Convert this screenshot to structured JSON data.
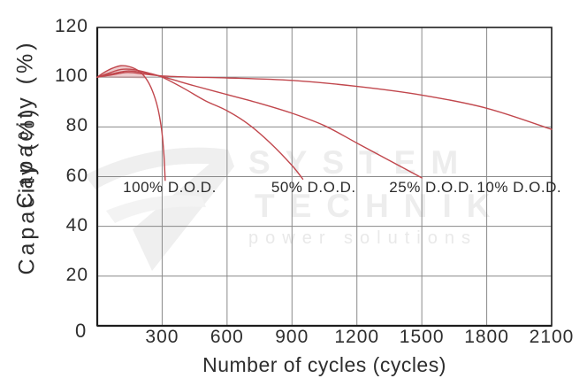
{
  "chart_data": {
    "type": "line",
    "title": "",
    "xlabel": "Number of cycles (cycles)",
    "ylabel": "Capacity (%)",
    "ylabel_duplicate": "Capacity (%)",
    "origin_label": "0",
    "xlim": [
      0,
      2100
    ],
    "ylim": [
      0,
      120
    ],
    "x_ticks": [
      300,
      600,
      900,
      1200,
      1500,
      1800,
      2100
    ],
    "y_ticks": [
      20,
      40,
      60,
      80,
      100,
      120
    ],
    "grid": true,
    "legend_position": "none",
    "colors": {
      "line": "#c1474d",
      "peak_fill": "rgba(193,73,80,0.28)",
      "grid": "#8a8a8a",
      "border": "#1d1d1d",
      "text": "#2e2e2e",
      "watermark": "#ededed"
    },
    "series": [
      {
        "name": "100% D.O.D.",
        "points": [
          [
            0,
            100
          ],
          [
            30,
            101.8
          ],
          [
            70,
            103.6
          ],
          [
            110,
            104.6
          ],
          [
            150,
            104.2
          ],
          [
            190,
            102.6
          ],
          [
            225,
            99.5
          ],
          [
            255,
            94.5
          ],
          [
            280,
            87.5
          ],
          [
            298,
            78.5
          ],
          [
            308,
            69
          ],
          [
            314,
            58.5
          ]
        ]
      },
      {
        "name": "50% D.O.D.",
        "points": [
          [
            0,
            100
          ],
          [
            50,
            101.5
          ],
          [
            110,
            103.1
          ],
          [
            170,
            103
          ],
          [
            240,
            101.6
          ],
          [
            300,
            100
          ],
          [
            400,
            95.5
          ],
          [
            500,
            90.5
          ],
          [
            600,
            86.5
          ],
          [
            700,
            81
          ],
          [
            800,
            73.5
          ],
          [
            900,
            64.5
          ],
          [
            950,
            59
          ]
        ]
      },
      {
        "name": "25% D.O.D.",
        "points": [
          [
            0,
            100
          ],
          [
            60,
            101.2
          ],
          [
            140,
            102.5
          ],
          [
            220,
            101.7
          ],
          [
            300,
            100.2
          ],
          [
            450,
            96.5
          ],
          [
            600,
            93
          ],
          [
            750,
            89.5
          ],
          [
            900,
            85.5
          ],
          [
            1050,
            80.5
          ],
          [
            1200,
            73.5
          ],
          [
            1350,
            66.5
          ],
          [
            1500,
            59.5
          ]
        ]
      },
      {
        "name": "10% D.O.D.",
        "points": [
          [
            0,
            100
          ],
          [
            60,
            100.8
          ],
          [
            140,
            101.9
          ],
          [
            220,
            101.2
          ],
          [
            300,
            100.5
          ],
          [
            450,
            100
          ],
          [
            600,
            99.7
          ],
          [
            900,
            98.7
          ],
          [
            1200,
            96.3
          ],
          [
            1500,
            92.8
          ],
          [
            1800,
            87.5
          ],
          [
            2100,
            79
          ]
        ]
      }
    ],
    "annotations": [
      {
        "label": "100% D.O.D.",
        "x": 335,
        "y": 55.5
      },
      {
        "label": "50% D.O.D.",
        "x": 1000,
        "y": 55.5
      },
      {
        "label": "25% D.O.D.",
        "x": 1545,
        "y": 55.5
      },
      {
        "label": "10% D.O.D.",
        "x": 1950,
        "y": 55.5
      }
    ]
  },
  "watermark": {
    "brand_line1": "SYSTEM",
    "brand_line2": "TECHNIK",
    "tagline": "power solutions"
  }
}
